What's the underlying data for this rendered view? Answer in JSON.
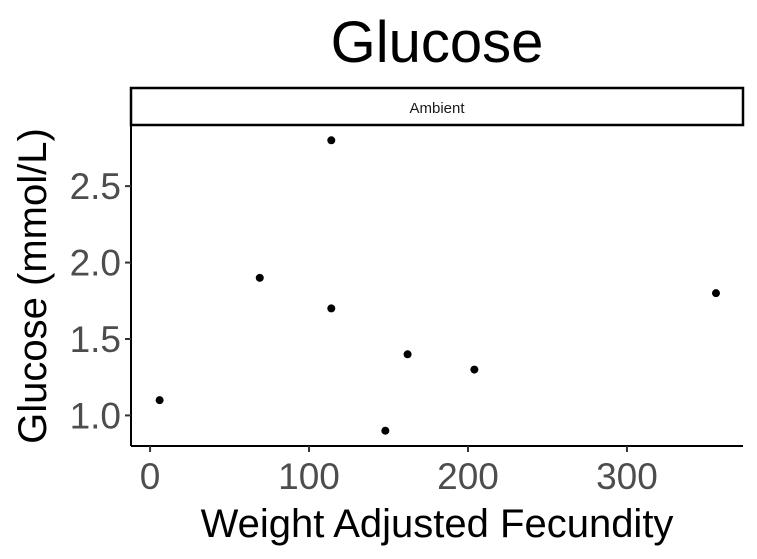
{
  "chart_data": {
    "type": "scatter",
    "title": "Glucose",
    "facet_label": "Ambient",
    "xlabel": "Weight Adjusted Fecundity",
    "ylabel": "Glucose (mmol/L)",
    "xlim": [
      -12,
      373
    ],
    "ylim": [
      0.8,
      2.9
    ],
    "x_ticks": [
      0,
      100,
      200,
      300
    ],
    "y_ticks": [
      1.0,
      1.5,
      2.0,
      2.5
    ],
    "y_tick_labels": [
      "1.0",
      "1.5",
      "2.0",
      "2.5"
    ],
    "points": [
      {
        "x": 6,
        "y": 1.1
      },
      {
        "x": 69,
        "y": 1.9
      },
      {
        "x": 114,
        "y": 2.8
      },
      {
        "x": 114,
        "y": 1.7
      },
      {
        "x": 148,
        "y": 0.9
      },
      {
        "x": 162,
        "y": 1.4
      },
      {
        "x": 204,
        "y": 1.3
      },
      {
        "x": 356,
        "y": 1.8
      }
    ],
    "point_color": "#000000",
    "grid": false,
    "legend": "none"
  }
}
